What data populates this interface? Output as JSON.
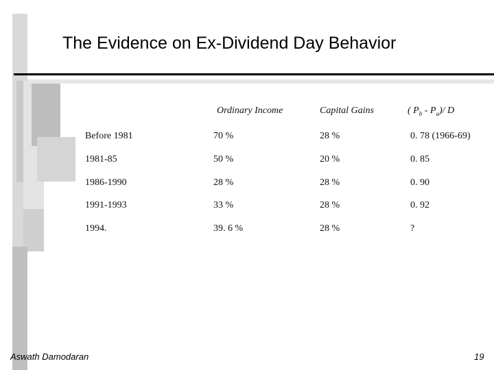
{
  "slide": {
    "title": "The Evidence on Ex-Dividend Day Behavior",
    "footer_author": "Aswath Damodaran",
    "page_number": "19"
  },
  "table": {
    "headers": [
      "",
      "Ordinary Income",
      "Capital Gains",
      "( P_b - P_a)/ D"
    ],
    "header_ratio": {
      "open": "( P",
      "b": "b",
      "mid": " - P",
      "a": "a",
      "close": ")/ D"
    },
    "rows": [
      [
        "Before 1981",
        "70 %",
        "28 %",
        "0. 78 (1966-69)"
      ],
      [
        "1981-85",
        "50 %",
        "20 %",
        "0. 85"
      ],
      [
        "1986-1990",
        "28 %",
        "28 %",
        "0. 90"
      ],
      [
        "1991-1993",
        "33 %",
        "28 %",
        "0. 92"
      ],
      [
        "1994.",
        "39. 6 %",
        "28 %",
        "?"
      ]
    ]
  },
  "colors": {
    "rule": "#000000",
    "deco_light": "#e6e6e6",
    "deco_mid": "#cfcfcf",
    "deco_dark": "#b4b4b4"
  }
}
